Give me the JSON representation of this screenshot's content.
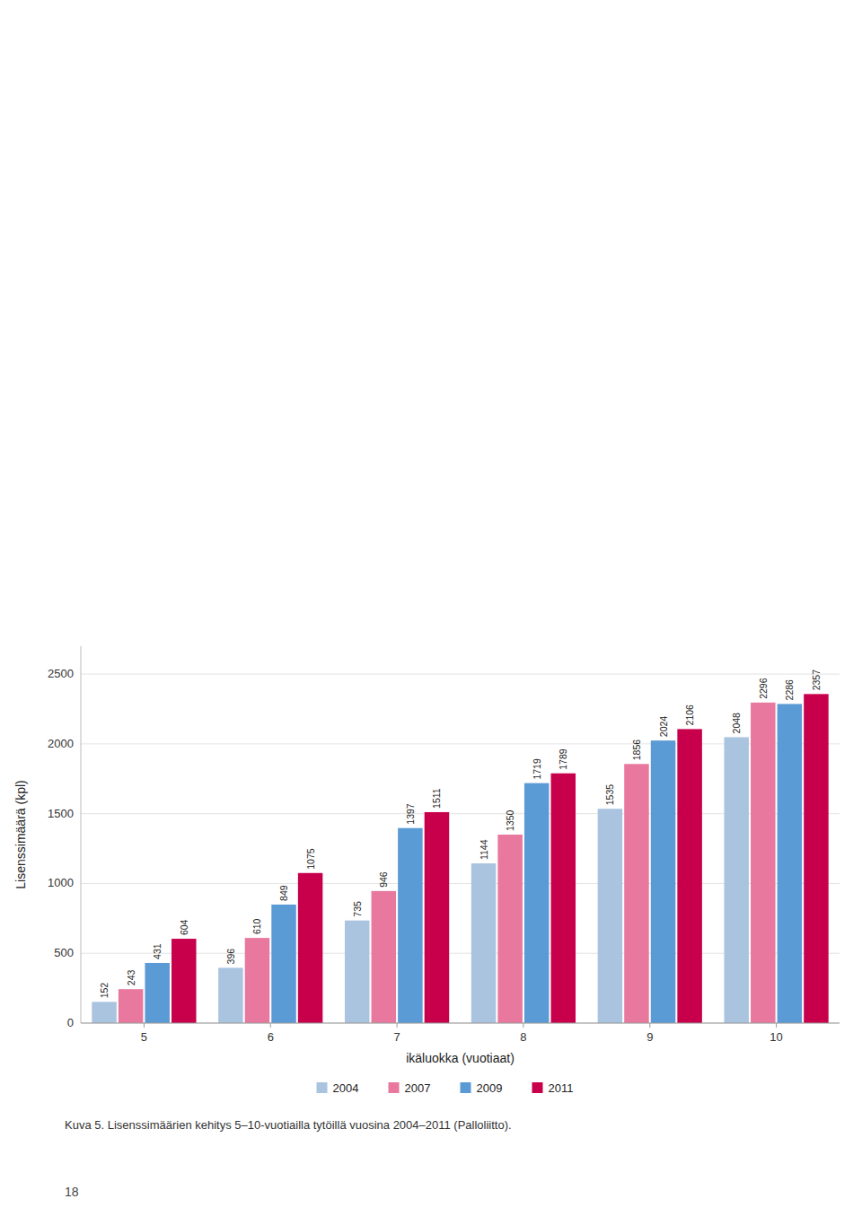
{
  "chart_data": {
    "type": "bar",
    "categories": [
      5,
      6,
      7,
      8,
      9,
      10
    ],
    "series": [
      {
        "name": "2004",
        "color": "#aac4e0",
        "values": [
          152,
          396,
          735,
          1144,
          1535,
          2048
        ]
      },
      {
        "name": "2007",
        "color": "#e8789e",
        "values": [
          243,
          610,
          946,
          1350,
          1856,
          2296
        ]
      },
      {
        "name": "2009",
        "color": "#5b9bd5",
        "values": [
          431,
          849,
          1397,
          1719,
          2024,
          2286
        ]
      },
      {
        "name": "2011",
        "color": "#c8004b",
        "values": [
          604,
          1075,
          1511,
          1789,
          2106,
          2357
        ]
      }
    ],
    "xlabel": "ikäluokka (vuotiaat)",
    "ylabel": "Lisenssimäärä (kpl)",
    "ylim": [
      0,
      2700
    ],
    "yticks": [
      0,
      500,
      1000,
      1500,
      2000,
      2500
    ],
    "grid": true,
    "data_labels": true,
    "legend": "bottom",
    "annotations": [
      "Kuva 5. Lisenssimäärien kehitys 5–10-vuotiailla tytöillä vuosina 2004–2011 (Palloliitto).",
      "18"
    ]
  }
}
